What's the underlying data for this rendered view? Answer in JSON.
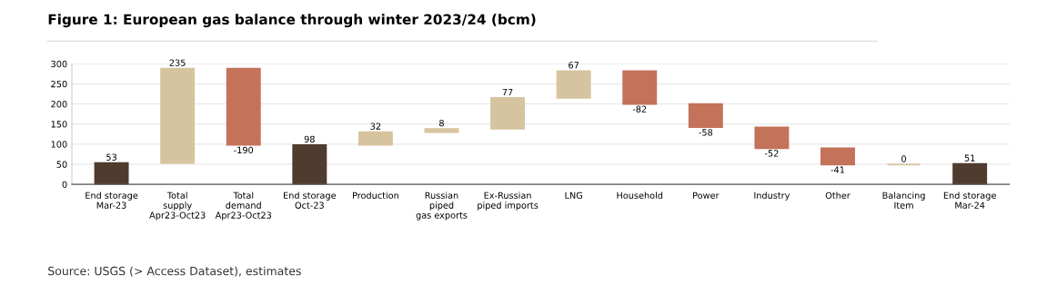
{
  "chart_data": {
    "type": "bar",
    "title": "Figure 1: European gas balance through winter 2023/24 (bcm)",
    "categories": [
      "End storage\nMar-23",
      "Total\nsupply\nApr23-Oct23",
      "Total\ndemand\nApr23-Oct23",
      "End storage\nOct-23",
      "Production",
      "Russian\npiped\ngas exports",
      "Ex-Russian\npiped imports",
      "LNG",
      "Household",
      "Power",
      "Industry",
      "Other",
      "Balancing\nItem",
      "End storage\nMar-24"
    ],
    "values": [
      53,
      235,
      -190,
      98,
      32,
      8,
      77,
      67,
      -82,
      -58,
      -52,
      -41,
      0,
      51
    ],
    "base": [
      0,
      53,
      288,
      0,
      98,
      130,
      138,
      215,
      282,
      200,
      142,
      90,
      49,
      0
    ],
    "colors": [
      "#4f3c2f",
      "#d6c4a0",
      "#c4725a",
      "#4f3c2f",
      "#d6c4a0",
      "#d6c4a0",
      "#d6c4a0",
      "#d6c4a0",
      "#c4725a",
      "#c4725a",
      "#c4725a",
      "#c4725a",
      "#d6c4a0",
      "#4f3c2f"
    ],
    "data_labels": true,
    "ylim": [
      0,
      300
    ],
    "yticks": [
      0,
      50,
      100,
      150,
      200,
      250,
      300
    ],
    "grid": "y",
    "annotations": [
      "Source: USGS (> Access Dataset), estimates"
    ]
  }
}
